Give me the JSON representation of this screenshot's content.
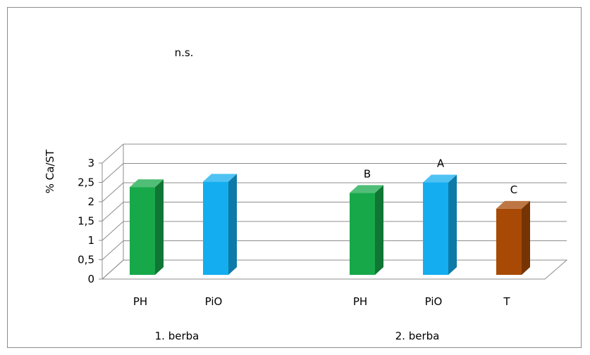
{
  "chart_data": {
    "type": "bar",
    "ylabel": "% Ca/ST",
    "ylim": [
      0,
      3
    ],
    "yticks": [
      "0",
      "0,5",
      "1",
      "1,5",
      "2",
      "2,5",
      "3"
    ],
    "grid": true,
    "groups": [
      {
        "label": "1. berba",
        "annotation": "n.s.",
        "bars": [
          {
            "category": "PH",
            "value": 2.38,
            "color": "#17a84a",
            "letter": ""
          },
          {
            "category": "PiO",
            "value": 2.52,
            "color": "#14aef0",
            "letter": ""
          }
        ]
      },
      {
        "label": "2. berba",
        "annotation": "",
        "bars": [
          {
            "category": "PH",
            "value": 2.23,
            "color": "#17a84a",
            "letter": "B"
          },
          {
            "category": "PiO",
            "value": 2.5,
            "color": "#14aef0",
            "letter": "A"
          },
          {
            "category": "T",
            "value": 1.82,
            "color": "#a84a06",
            "letter": "C"
          }
        ]
      }
    ]
  }
}
